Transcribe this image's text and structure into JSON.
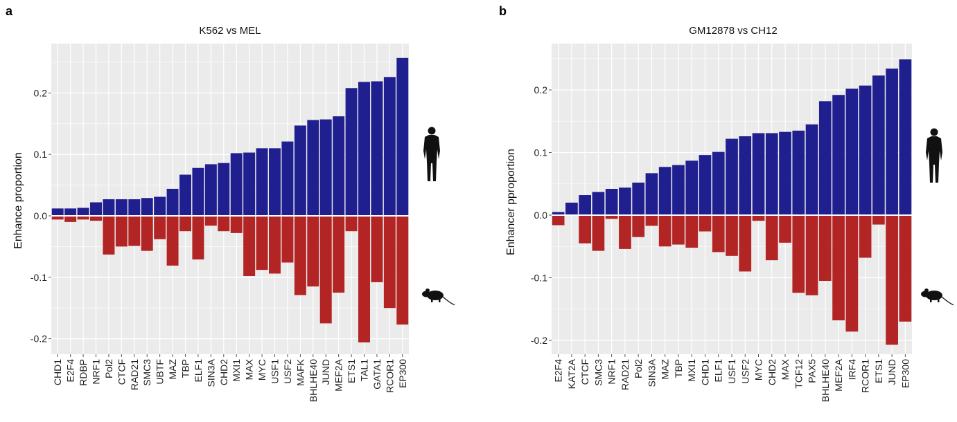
{
  "chart_data": [
    {
      "type": "bar",
      "panel_label": "a",
      "title": "K562 vs MEL",
      "ylabel": "Enhance proportion",
      "xlabel": "",
      "ylim": [
        -0.23,
        0.29
      ],
      "yticks": [
        0.2,
        0.1,
        0.0,
        -0.1,
        -0.2
      ],
      "ytick_labels": [
        "0.2",
        "0.1",
        "0.0",
        "-0.1",
        "-0.2"
      ],
      "categories": [
        "CHD1",
        "E2F4",
        "RDBP",
        "NRF1",
        "Pol2",
        "CTCF",
        "RAD21",
        "SMC3",
        "UBTF",
        "MAZ",
        "TBP",
        "ELF1",
        "SIN3A",
        "CHD2",
        "MXI1",
        "MAX",
        "MYC",
        "USF1",
        "USF2",
        "MAFK",
        "BHLHE40",
        "JUND",
        "MEF2A",
        "ETS1",
        "TAL1",
        "GATA1",
        "RCOR1",
        "EP300"
      ],
      "series": [
        {
          "color": "#1f1f8f",
          "values": [
            0.012,
            0.012,
            0.013,
            0.022,
            0.027,
            0.027,
            0.027,
            0.029,
            0.031,
            0.044,
            0.067,
            0.078,
            0.084,
            0.086,
            0.102,
            0.103,
            0.11,
            0.11,
            0.121,
            0.147,
            0.156,
            0.157,
            0.162,
            0.208,
            0.218,
            0.219,
            0.226,
            0.257
          ]
        },
        {
          "color": "#b32424",
          "values": [
            -0.006,
            -0.01,
            -0.006,
            -0.008,
            -0.063,
            -0.05,
            -0.049,
            -0.057,
            -0.038,
            -0.081,
            -0.025,
            -0.071,
            -0.016,
            -0.025,
            -0.028,
            -0.098,
            -0.088,
            -0.094,
            -0.076,
            -0.129,
            -0.115,
            -0.175,
            -0.125,
            -0.025,
            -0.206,
            -0.108,
            -0.15,
            -0.177
          ]
        }
      ],
      "grid": true,
      "background": "#ebebeb"
    },
    {
      "type": "bar",
      "panel_label": "b",
      "title": "GM12878 vs CH12",
      "ylabel": "Enhancer pproportion",
      "xlabel": "",
      "ylim": [
        -0.23,
        0.275
      ],
      "yticks": [
        0.2,
        0.1,
        0.0,
        -0.1,
        -0.2
      ],
      "ytick_labels": [
        "0.2",
        "0.1",
        "0.0",
        "-0.1",
        "-0.2"
      ],
      "categories": [
        "E2F4",
        "KAT2A",
        "CTCF",
        "SMC3",
        "NRF1",
        "RAD21",
        "Pol2",
        "SIN3A",
        "MAZ",
        "TBP",
        "MXI1",
        "CHD1",
        "ELF1",
        "USF1",
        "USF2",
        "MYC",
        "CHD2",
        "MAX",
        "TCF12",
        "PAX5",
        "BHLHE40",
        "MEF2A",
        "IRF4",
        "RCOR1",
        "ETS1",
        "JUND",
        "EP300"
      ],
      "series": [
        {
          "color": "#1f1f8f",
          "values": [
            0.005,
            0.02,
            0.032,
            0.037,
            0.042,
            0.044,
            0.052,
            0.067,
            0.077,
            0.08,
            0.087,
            0.096,
            0.101,
            0.122,
            0.126,
            0.131,
            0.131,
            0.133,
            0.135,
            0.145,
            0.182,
            0.192,
            0.202,
            0.207,
            0.223,
            0.234,
            0.249
          ]
        },
        {
          "color": "#b32424",
          "values": [
            -0.016,
            0.0,
            -0.045,
            -0.057,
            -0.006,
            -0.054,
            -0.035,
            -0.017,
            -0.05,
            -0.047,
            -0.052,
            -0.026,
            -0.059,
            -0.065,
            -0.09,
            -0.009,
            -0.072,
            -0.044,
            -0.124,
            -0.128,
            -0.105,
            -0.168,
            -0.186,
            -0.068,
            -0.015,
            -0.207,
            -0.17
          ]
        }
      ],
      "grid": true,
      "background": "#ebebeb"
    }
  ],
  "icons": {
    "human": "human-silhouette-icon",
    "mouse": "mouse-silhouette-icon"
  }
}
